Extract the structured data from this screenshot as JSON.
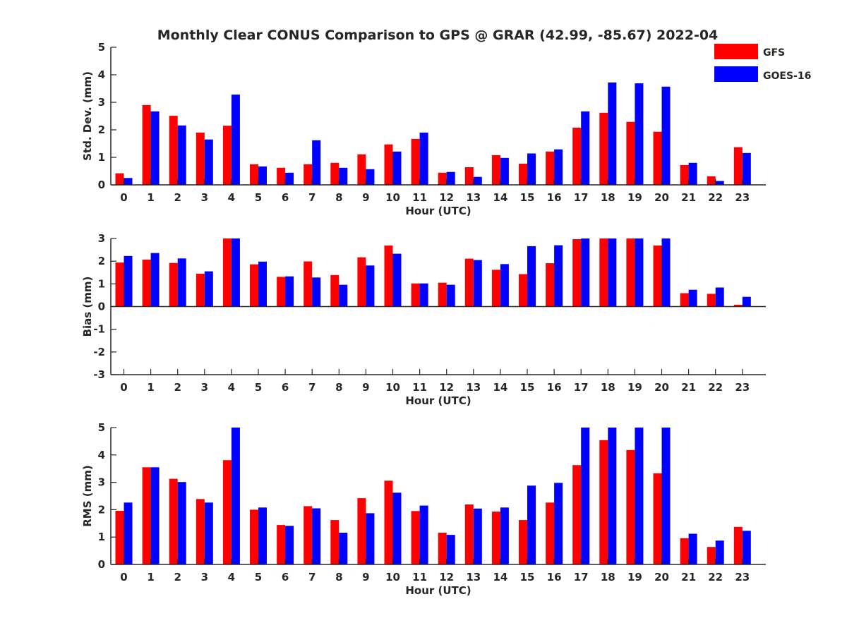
{
  "figure": {
    "title": "Monthly Clear CONUS Comparison to GPS @ GRAR (42.99, -85.67) 2022-04"
  },
  "legend": {
    "placement": "top-right",
    "entries": [
      {
        "name": "GFS",
        "color": "#ff0000"
      },
      {
        "name": "GOES-16",
        "color": "#0000ff"
      }
    ]
  },
  "chart_data": [
    {
      "type": "bar",
      "title": "Monthly Clear CONUS Comparison to GPS @ GRAR (42.99, -85.67) 2022-04",
      "xlabel": "Hour (UTC)",
      "ylabel": "Std. Dev. (mm)",
      "ylim": [
        0,
        5
      ],
      "yticks": [
        0,
        1,
        2,
        3,
        4,
        5
      ],
      "categories": [
        "0",
        "1",
        "2",
        "3",
        "4",
        "5",
        "6",
        "7",
        "8",
        "9",
        "10",
        "11",
        "12",
        "13",
        "14",
        "15",
        "16",
        "17",
        "18",
        "19",
        "20",
        "21",
        "22",
        "23"
      ],
      "series": [
        {
          "name": "GFS",
          "color": "#ff0000",
          "values": [
            0.42,
            2.9,
            2.51,
            1.9,
            2.15,
            0.75,
            0.62,
            0.75,
            0.8,
            1.11,
            1.47,
            1.67,
            0.44,
            0.64,
            1.08,
            0.77,
            1.21,
            2.08,
            2.62,
            2.29,
            1.93,
            0.72,
            0.31,
            1.37
          ]
        },
        {
          "name": "GOES-16",
          "color": "#0000ff",
          "values": [
            0.25,
            2.67,
            2.16,
            1.65,
            3.28,
            0.67,
            0.44,
            1.62,
            0.62,
            0.57,
            1.21,
            1.9,
            0.47,
            0.29,
            0.98,
            1.14,
            1.29,
            2.67,
            3.72,
            3.69,
            3.57,
            0.8,
            0.14,
            1.16
          ]
        }
      ]
    },
    {
      "type": "bar",
      "xlabel": "Hour (UTC)",
      "ylabel": "Bias (mm)",
      "ylim": [
        -3,
        3
      ],
      "yticks": [
        -3,
        -2,
        -1,
        0,
        1,
        2,
        3
      ],
      "categories": [
        "0",
        "1",
        "2",
        "3",
        "4",
        "5",
        "6",
        "7",
        "8",
        "9",
        "10",
        "11",
        "12",
        "13",
        "14",
        "15",
        "16",
        "17",
        "18",
        "19",
        "20",
        "21",
        "22",
        "23"
      ],
      "series": [
        {
          "name": "GFS",
          "color": "#ff0000",
          "values": [
            1.94,
            2.07,
            1.92,
            1.45,
            3.0,
            1.86,
            1.31,
            1.99,
            1.39,
            2.17,
            2.69,
            1.02,
            1.05,
            2.11,
            1.62,
            1.43,
            1.91,
            2.97,
            3.0,
            3.0,
            2.69,
            0.59,
            0.56,
            0.08
          ]
        },
        {
          "name": "GOES-16",
          "color": "#0000ff",
          "values": [
            2.23,
            2.36,
            2.12,
            1.55,
            3.0,
            1.98,
            1.33,
            1.28,
            0.96,
            1.81,
            2.33,
            1.02,
            0.96,
            2.05,
            1.87,
            2.66,
            2.7,
            3.0,
            3.0,
            3.0,
            3.0,
            0.74,
            0.84,
            0.43
          ]
        }
      ]
    },
    {
      "type": "bar",
      "xlabel": "Hour (UTC)",
      "ylabel": "RMS (mm)",
      "ylim": [
        0,
        5
      ],
      "yticks": [
        0,
        1,
        2,
        3,
        4,
        5
      ],
      "categories": [
        "0",
        "1",
        "2",
        "3",
        "4",
        "5",
        "6",
        "7",
        "8",
        "9",
        "10",
        "11",
        "12",
        "13",
        "14",
        "15",
        "16",
        "17",
        "18",
        "19",
        "20",
        "21",
        "22",
        "23"
      ],
      "series": [
        {
          "name": "GFS",
          "color": "#ff0000",
          "values": [
            1.96,
            3.55,
            3.13,
            2.39,
            3.81,
            2.0,
            1.44,
            2.13,
            1.62,
            2.42,
            3.06,
            1.95,
            1.16,
            2.19,
            1.93,
            1.62,
            2.26,
            3.63,
            4.54,
            4.18,
            3.33,
            0.96,
            0.64,
            1.37
          ]
        },
        {
          "name": "GOES-16",
          "color": "#0000ff",
          "values": [
            2.26,
            3.55,
            3.01,
            2.26,
            5.0,
            2.08,
            1.41,
            2.05,
            1.16,
            1.87,
            2.62,
            2.15,
            1.08,
            2.04,
            2.08,
            2.88,
            2.98,
            5.0,
            5.0,
            5.0,
            5.0,
            1.12,
            0.87,
            1.23
          ]
        }
      ]
    }
  ]
}
